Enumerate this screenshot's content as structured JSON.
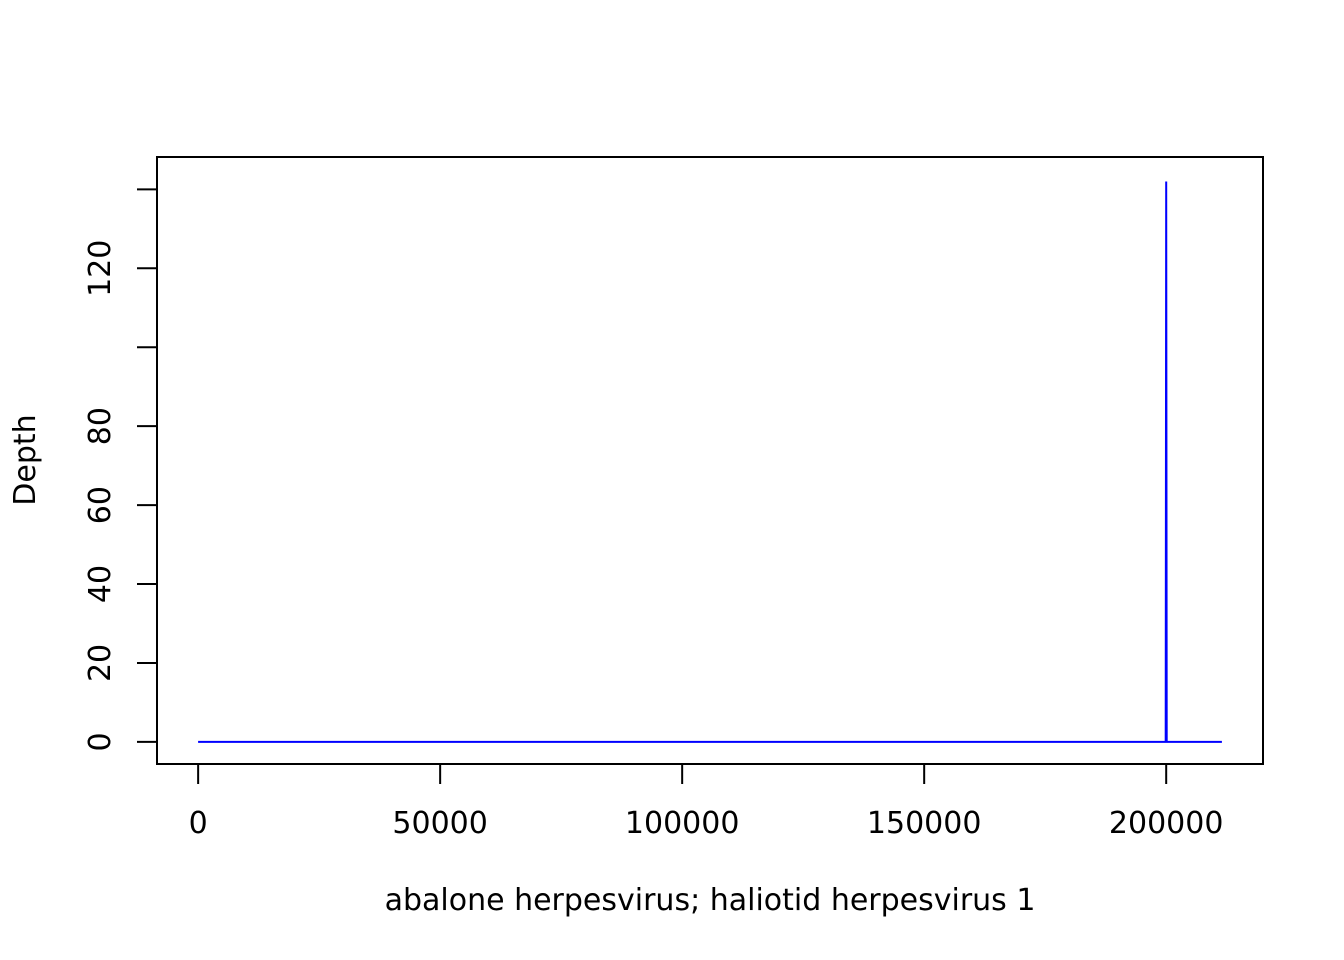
{
  "chart_data": {
    "type": "line",
    "title": "",
    "xlabel": "abalone herpesvirus; haliotid herpesvirus 1",
    "ylabel": "Depth",
    "xlim": [
      -8500,
      220000
    ],
    "ylim": [
      -5.6,
      148.2
    ],
    "x_ticks": [
      {
        "value": 0,
        "label": "0"
      },
      {
        "value": 50000,
        "label": "50000"
      },
      {
        "value": 100000,
        "label": "100000"
      },
      {
        "value": 150000,
        "label": "150000"
      },
      {
        "value": 200000,
        "label": "200000"
      }
    ],
    "y_ticks": [
      {
        "value": 0,
        "label": "0"
      },
      {
        "value": 20,
        "label": "20"
      },
      {
        "value": 40,
        "label": "40"
      },
      {
        "value": 60,
        "label": "60"
      },
      {
        "value": 80,
        "label": "80"
      },
      {
        "value": 100,
        "label": ""
      },
      {
        "value": 120,
        "label": "120"
      },
      {
        "value": 140,
        "label": ""
      }
    ],
    "grid": false,
    "series": [
      {
        "color": "#0000ff",
        "x": [
          0,
          199900,
          200000,
          200100,
          211500
        ],
        "y": [
          0,
          0,
          142,
          0,
          0
        ]
      }
    ]
  }
}
